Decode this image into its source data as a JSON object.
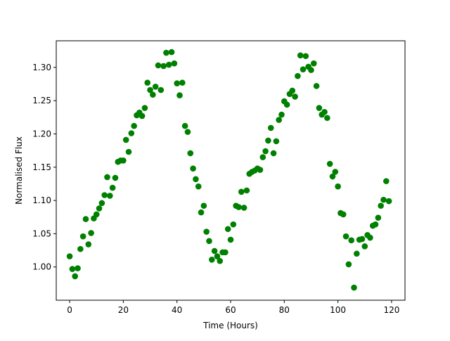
{
  "chart_data": {
    "type": "scatter",
    "title": "",
    "xlabel": "Time (Hours)",
    "ylabel": "Normalised Flux",
    "xlim": [
      -5,
      125
    ],
    "ylim": [
      0.95,
      1.34
    ],
    "x_ticks": [
      0,
      20,
      40,
      60,
      80,
      100,
      120
    ],
    "x_tick_labels": [
      "0",
      "20",
      "40",
      "60",
      "80",
      "100",
      "120"
    ],
    "y_ticks": [
      1.0,
      1.05,
      1.1,
      1.15,
      1.2,
      1.25,
      1.3
    ],
    "y_tick_labels": [
      "1.00",
      "1.05",
      "1.10",
      "1.15",
      "1.20",
      "1.25",
      "1.30"
    ],
    "grid": false,
    "legend": false,
    "marker_color": "#008000",
    "series": [
      {
        "x": [
          0,
          1,
          2,
          3,
          4,
          5,
          6,
          7,
          8,
          9,
          10,
          11,
          12,
          13,
          14,
          15,
          16,
          17,
          18,
          19,
          20,
          21,
          22,
          23,
          24,
          25,
          26,
          27,
          28,
          29,
          30,
          31,
          32,
          33,
          34,
          35,
          36,
          37,
          38,
          39,
          40,
          41,
          42,
          43,
          44,
          45,
          46,
          47,
          48,
          49,
          50,
          51,
          52,
          53,
          54,
          55,
          56,
          57,
          58,
          59,
          60,
          61,
          62,
          63,
          64,
          65,
          66,
          67,
          68,
          69,
          70,
          71,
          72,
          73,
          74,
          75,
          76,
          77,
          78,
          79,
          80,
          81,
          82,
          83,
          84,
          85,
          86,
          87,
          88,
          89,
          90,
          91,
          92,
          93,
          94,
          95,
          96,
          97,
          98,
          99,
          100,
          101,
          102,
          103,
          104,
          105,
          106,
          107,
          108,
          109,
          110,
          111,
          112,
          113,
          114,
          115,
          116,
          117,
          118,
          119
        ],
        "y": [
          1.016,
          0.997,
          0.986,
          0.998,
          1.027,
          1.046,
          1.072,
          1.034,
          1.051,
          1.073,
          1.079,
          1.088,
          1.096,
          1.108,
          1.135,
          1.107,
          1.119,
          1.134,
          1.158,
          1.16,
          1.16,
          1.191,
          1.173,
          1.201,
          1.212,
          1.228,
          1.232,
          1.227,
          1.239,
          1.277,
          1.266,
          1.259,
          1.271,
          1.303,
          1.266,
          1.302,
          1.322,
          1.304,
          1.323,
          1.306,
          1.276,
          1.258,
          1.277,
          1.212,
          1.203,
          1.171,
          1.148,
          1.132,
          1.121,
          1.082,
          1.092,
          1.053,
          1.039,
          1.011,
          1.024,
          1.016,
          1.009,
          1.022,
          1.022,
          1.057,
          1.041,
          1.064,
          1.092,
          1.09,
          1.113,
          1.089,
          1.115,
          1.14,
          1.143,
          1.145,
          1.148,
          1.146,
          1.165,
          1.174,
          1.19,
          1.209,
          1.171,
          1.189,
          1.221,
          1.229,
          1.249,
          1.244,
          1.26,
          1.265,
          1.256,
          1.287,
          1.318,
          1.297,
          1.317,
          1.301,
          1.296,
          1.306,
          1.272,
          1.239,
          1.229,
          1.233,
          1.224,
          1.155,
          1.136,
          1.143,
          1.121,
          1.081,
          1.079,
          1.046,
          1.004,
          1.04,
          0.969,
          1.02,
          1.041,
          1.042,
          1.031,
          1.048,
          1.044,
          1.062,
          1.064,
          1.074,
          1.092,
          1.101,
          1.129,
          1.099
        ]
      }
    ]
  }
}
